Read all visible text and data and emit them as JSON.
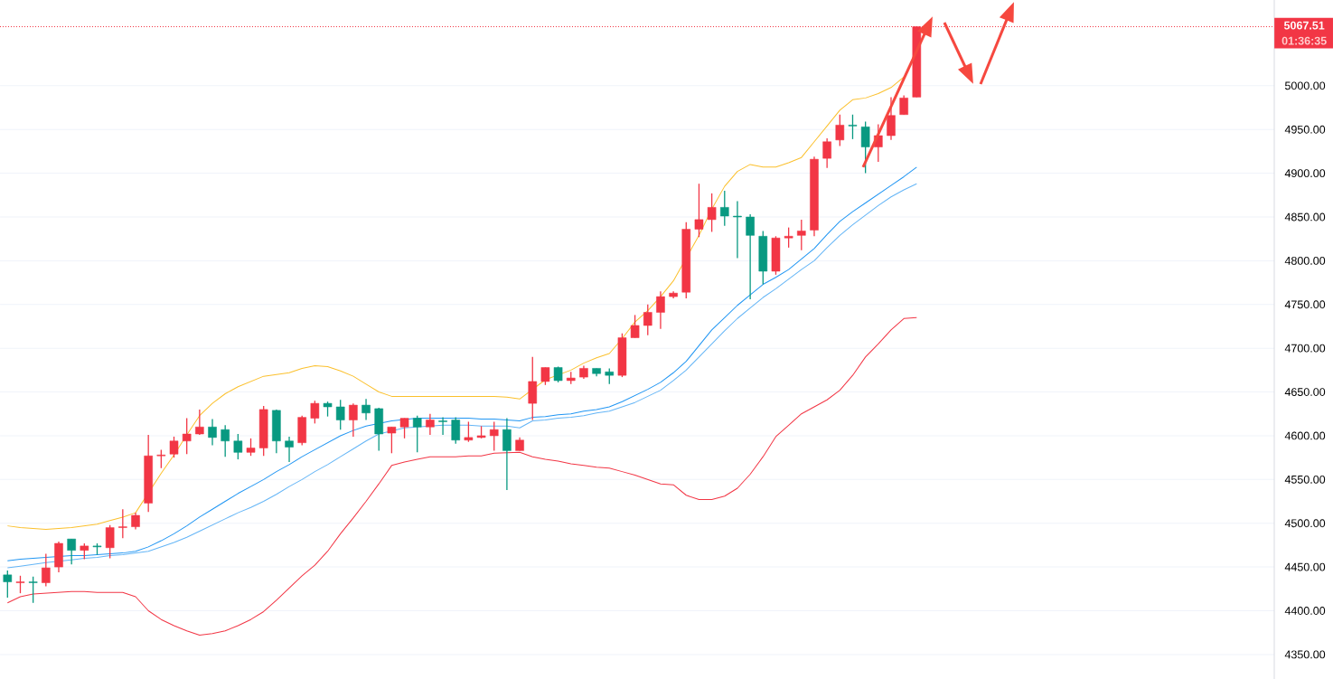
{
  "chart_data": {
    "type": "candlestick",
    "categories": [
      null,
      null,
      null,
      null,
      null,
      null,
      null,
      null,
      null,
      null,
      null,
      null,
      null,
      null,
      null,
      null,
      null,
      null,
      null,
      null,
      null,
      null,
      null,
      null,
      null,
      null,
      null,
      null,
      null,
      null,
      null,
      null,
      null,
      null,
      null,
      null,
      null,
      null,
      null,
      null,
      null,
      null,
      null,
      null,
      null,
      null,
      null,
      null,
      null,
      null,
      null,
      null,
      null,
      null,
      null,
      null,
      null,
      null,
      null,
      null,
      null,
      null,
      null,
      null,
      null,
      null,
      null,
      null,
      null,
      null,
      null,
      null
    ],
    "ohlc": [
      [
        4441,
        4446,
        4415,
        4433
      ],
      [
        4432,
        4440,
        4420,
        4433
      ],
      [
        4433,
        4439,
        4409,
        4432
      ],
      [
        4432,
        4465,
        4428,
        4449
      ],
      [
        4450,
        4479,
        4444,
        4477
      ],
      [
        4482,
        4482,
        4453,
        4469
      ],
      [
        4469,
        4477,
        4459,
        4474
      ],
      [
        4474,
        4477,
        4464,
        4473
      ],
      [
        4472,
        4498,
        4460,
        4495
      ],
      [
        4495,
        4516,
        4483,
        4496
      ],
      [
        4496,
        4512,
        4493,
        4509
      ],
      [
        4523,
        4601,
        4513,
        4577
      ],
      [
        4577,
        4584,
        4563,
        4578
      ],
      [
        4579,
        4599,
        4575,
        4594
      ],
      [
        4594,
        4620,
        4579,
        4602
      ],
      [
        4602,
        4630,
        4601,
        4610
      ],
      [
        4610,
        4619,
        4589,
        4598
      ],
      [
        4607,
        4612,
        4576,
        4594
      ],
      [
        4594,
        4602,
        4573,
        4581
      ],
      [
        4581,
        4597,
        4577,
        4586
      ],
      [
        4586,
        4634,
        4577,
        4630
      ],
      [
        4629,
        4630,
        4580,
        4594
      ],
      [
        4594,
        4599,
        4570,
        4587
      ],
      [
        4592,
        4623,
        4589,
        4621
      ],
      [
        4620,
        4640,
        4614,
        4637
      ],
      [
        4637,
        4639,
        4622,
        4633
      ],
      [
        4633,
        4641,
        4607,
        4618
      ],
      [
        4618,
        4637,
        4599,
        4635
      ],
      [
        4635,
        4642,
        4618,
        4626
      ],
      [
        4631,
        4632,
        4583,
        4602
      ],
      [
        4603,
        4610,
        4580,
        4610
      ],
      [
        4610,
        4620,
        4597,
        4620
      ],
      [
        4620,
        4623,
        4581,
        4610
      ],
      [
        4610,
        4625,
        4601,
        4618
      ],
      [
        4617,
        4621,
        4601,
        4616
      ],
      [
        4618,
        4621,
        4591,
        4595
      ],
      [
        4595,
        4616,
        4593,
        4598
      ],
      [
        4598,
        4611,
        4597,
        4600
      ],
      [
        4600,
        4616,
        4583,
        4607
      ],
      [
        4607,
        4620,
        4538,
        4583
      ],
      [
        4583,
        4598,
        4583,
        4595
      ],
      [
        4637,
        4690,
        4618,
        4662
      ],
      [
        4662,
        4678,
        4658,
        4678
      ],
      [
        4678,
        4679,
        4661,
        4663
      ],
      [
        4663,
        4673,
        4659,
        4666
      ],
      [
        4667,
        4680,
        4665,
        4677
      ],
      [
        4677,
        4677,
        4668,
        4671
      ],
      [
        4673,
        4677,
        4659,
        4669
      ],
      [
        4669,
        4717,
        4667,
        4712
      ],
      [
        4712,
        4738,
        4712,
        4726
      ],
      [
        4726,
        4750,
        4715,
        4741
      ],
      [
        4741,
        4765,
        4722,
        4759
      ],
      [
        4759,
        4765,
        4757,
        4763
      ],
      [
        4764,
        4844,
        4757,
        4836
      ],
      [
        4836,
        4888,
        4827,
        4847
      ],
      [
        4847,
        4877,
        4833,
        4861
      ],
      [
        4861,
        4880,
        4840,
        4851
      ],
      [
        4851,
        4868,
        4803,
        4850
      ],
      [
        4850,
        4853,
        4756,
        4829
      ],
      [
        4828,
        4834,
        4773,
        4788
      ],
      [
        4788,
        4828,
        4784,
        4826
      ],
      [
        4826,
        4838,
        4815,
        4828
      ],
      [
        4829,
        4847,
        4812,
        4834
      ],
      [
        4835,
        4919,
        4828,
        4916
      ],
      [
        4917,
        4940,
        4906,
        4936
      ],
      [
        4938,
        4967,
        4931,
        4955
      ],
      [
        4955,
        4967,
        4939,
        4954
      ],
      [
        4953,
        4959,
        4900,
        4930
      ],
      [
        4930,
        4956,
        4913,
        4943
      ],
      [
        4943,
        4987,
        4938,
        4966
      ],
      [
        4967,
        4989,
        4967,
        4986
      ],
      [
        4987,
        5068,
        4987,
        5067.51
      ]
    ],
    "colors": [
      "#089981",
      "#f23645",
      "#089981",
      "#f23645",
      "#f23645",
      "#089981",
      "#f23645",
      "#089981",
      "#f23645",
      "#f23645",
      "#f23645",
      "#f23645",
      "#f23645",
      "#f23645",
      "#f23645",
      "#f23645",
      "#089981",
      "#089981",
      "#089981",
      "#f23645",
      "#f23645",
      "#089981",
      "#089981",
      "#f23645",
      "#f23645",
      "#089981",
      "#089981",
      "#f23645",
      "#089981",
      "#089981",
      "#f23645",
      "#f23645",
      "#089981",
      "#f23645",
      "#089981",
      "#089981",
      "#f23645",
      "#f23645",
      "#f23645",
      "#089981",
      "#f23645",
      "#f23645",
      "#f23645",
      "#089981",
      "#f23645",
      "#f23645",
      "#089981",
      "#089981",
      "#f23645",
      "#f23645",
      "#f23645",
      "#f23645",
      "#f23645",
      "#f23645",
      "#f23645",
      "#f23645",
      "#089981",
      "#089981",
      "#089981",
      "#089981",
      "#f23645",
      "#f23645",
      "#f23645",
      "#f23645",
      "#f23645",
      "#f23645",
      "#089981",
      "#089981",
      "#f23645",
      "#f23645",
      "#f23645",
      "#f23645"
    ],
    "series": [
      {
        "type": "line",
        "color": "#fbc02d",
        "values": [
          4497,
          4495,
          4494,
          4493,
          4494,
          4495,
          4497,
          4499,
          4503,
          4507,
          4512,
          null,
          4557,
          4578,
          4601,
          4623,
          4637,
          4648,
          4656,
          4662,
          4668,
          4670,
          4672,
          4677,
          4680,
          4679,
          4674,
          4668,
          4659,
          4650,
          4645,
          4645,
          4645,
          4645,
          4645,
          4645,
          4645,
          4645,
          4645,
          4644,
          4642,
          null,
          4664,
          null,
          4675,
          4683,
          4689,
          4694,
          4711,
          4730,
          4743,
          4759,
          4777,
          null,
          4829,
          4859,
          4885,
          4902,
          4910,
          4907,
          4907,
          4912,
          4918,
          4936,
          4954,
          4972,
          4984,
          4986,
          4991,
          4998,
          5010,
          null
        ]
      },
      {
        "type": "line",
        "color": "#f23645",
        "values": [
          4409,
          4416,
          4419,
          4420,
          4421,
          4422,
          4422,
          4421,
          4421,
          4421,
          4416,
          4400,
          4390,
          4383,
          4377,
          4372,
          4374,
          4377,
          4383,
          4390,
          4399,
          4412,
          4426,
          4440,
          4452,
          4468,
          4488,
          4506,
          4525,
          4545,
          4566,
          4570,
          4573,
          4576,
          4576,
          4576,
          4577,
          4577,
          4580,
          null,
          4581,
          4576,
          4573,
          4571,
          4568,
          4566,
          4564,
          4563,
          4559,
          4555,
          4550,
          4545,
          4544,
          4532,
          4527,
          4527,
          4531,
          4540,
          4556,
          4576,
          4599,
          4612,
          4625,
          4633,
          4641,
          4652,
          4669,
          4690,
          4705,
          4721,
          4734,
          4735
        ]
      },
      {
        "type": "line",
        "color": "#2196f3",
        "values": [
          4457,
          4459,
          4460,
          4461,
          null,
          4463,
          4463,
          4464,
          4465,
          4466,
          4468,
          4473,
          4480,
          4488,
          4497,
          4507,
          4516,
          4525,
          4534,
          4542,
          4550,
          4559,
          4567,
          4576,
          4584,
          4592,
          4600,
          4606,
          4611,
          null,
          4617,
          null,
          4620,
          4620,
          4620,
          4620,
          4620,
          4619,
          4619,
          4618,
          4617,
          4621,
          4622,
          4624,
          4625,
          4628,
          4630,
          4633,
          4639,
          4646,
          4653,
          4661,
          4672,
          4685,
          4703,
          4721,
          4735,
          4749,
          4761,
          4773,
          4781,
          4790,
          4802,
          4814,
          4830,
          4845,
          4856,
          4866,
          4876,
          4886,
          4896,
          4907
        ]
      },
      {
        "type": "line",
        "color": "#64b5f6",
        "values": [
          4449,
          4451,
          4453,
          4455,
          null,
          4458,
          4460,
          4461,
          4463,
          4464,
          4466,
          4468,
          4473,
          4478,
          4484,
          4491,
          4498,
          4505,
          4512,
          4518,
          4525,
          4533,
          4542,
          4550,
          4559,
          4567,
          4576,
          4585,
          4594,
          4602,
          null,
          4609,
          4610,
          null,
          4612,
          null,
          4612,
          4611,
          4611,
          4611,
          4609,
          4617,
          4618,
          4620,
          4621,
          4623,
          4626,
          4628,
          4633,
          4638,
          4645,
          4652,
          4663,
          4675,
          4690,
          4705,
          4720,
          4734,
          4746,
          4758,
          4768,
          4779,
          4790,
          4800,
          4815,
          4829,
          4841,
          4852,
          4863,
          4873,
          4881,
          4888
        ]
      }
    ],
    "ylim": [
      4322,
      5098
    ],
    "yticks": [
      {
        "value": 4350,
        "label": "4350.00"
      },
      {
        "value": 4400,
        "label": "4400.00"
      },
      {
        "value": 4450,
        "label": "4450.00"
      },
      {
        "value": 4500,
        "label": "4500.00"
      },
      {
        "value": 4550,
        "label": "4550.00"
      },
      {
        "value": 4600,
        "label": "4600.00"
      },
      {
        "value": 4650,
        "label": "4650.00"
      },
      {
        "value": 4700,
        "label": "4700.00"
      },
      {
        "value": 4750,
        "label": "4750.00"
      },
      {
        "value": 4800,
        "label": "4800.00"
      },
      {
        "value": 4850,
        "label": "4850.00"
      },
      {
        "value": 4900,
        "label": "4900.00"
      },
      {
        "value": 4950,
        "label": "4950.00"
      },
      {
        "value": 5000,
        "label": "5000.00"
      }
    ],
    "tick_labels": "y",
    "grid": "y",
    "ref_lines": [
      {
        "axis": "y",
        "value": 5067.51,
        "label": "5067.51",
        "color": "#f23645",
        "line_style": "dotted"
      }
    ],
    "annotations": [
      "01:36:35"
    ]
  }
}
